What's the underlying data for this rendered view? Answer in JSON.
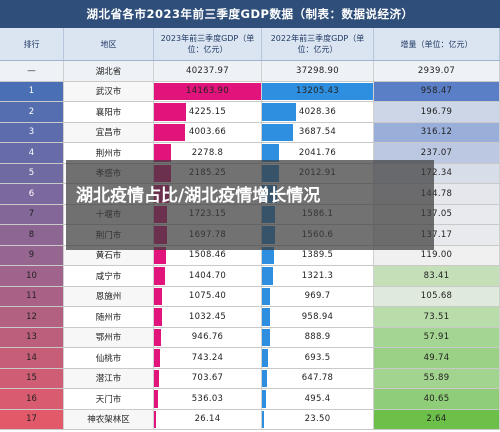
{
  "title": "湖北省各市2023年前三季度GDP数据（制表：数据说经济）",
  "headers": [
    "排行",
    "地区",
    "2023年前三季度GDP（单位：亿元）",
    "2022年前三季度GDP（单位：亿元）",
    "增量（单位：亿元）"
  ],
  "total": {
    "rank": "—",
    "region": "湖北省",
    "gdp2023": "40237.97",
    "gdp2022": "37298.90",
    "increase": "2939.07"
  },
  "rows": [
    {
      "rank": "1",
      "region": "武汉市",
      "gdp2023": "14163.90",
      "gdp2022": "13205.43",
      "increase": "958.47",
      "v23": 14163.9,
      "v22": 13205.43,
      "vi": 958.47
    },
    {
      "rank": "2",
      "region": "襄阳市",
      "gdp2023": "4225.15",
      "gdp2022": "4028.36",
      "increase": "196.79",
      "v23": 4225.15,
      "v22": 4028.36,
      "vi": 196.79
    },
    {
      "rank": "3",
      "region": "宜昌市",
      "gdp2023": "4003.66",
      "gdp2022": "3687.54",
      "increase": "316.12",
      "v23": 4003.66,
      "v22": 3687.54,
      "vi": 316.12
    },
    {
      "rank": "4",
      "region": "荆州市",
      "gdp2023": "2278.8",
      "gdp2022": "2041.76",
      "increase": "237.07",
      "v23": 2278.8,
      "v22": 2041.76,
      "vi": 237.07
    },
    {
      "rank": "5",
      "region": "孝感市",
      "gdp2023": "2185.25",
      "gdp2022": "2012.91",
      "increase": "172.34",
      "v23": 2185.25,
      "v22": 2012.91,
      "vi": 172.34
    },
    {
      "rank": "6",
      "region": "",
      "gdp2023": "",
      "gdp2022": "",
      "increase": "144.78",
      "v23": 1950.0,
      "v22": 1805.2,
      "vi": 144.78
    },
    {
      "rank": "7",
      "region": "十堰市",
      "gdp2023": "1723.15",
      "gdp2022": "1586.1",
      "increase": "137.05",
      "v23": 1723.15,
      "v22": 1586.1,
      "vi": 137.05
    },
    {
      "rank": "8",
      "region": "荆门市",
      "gdp2023": "1697.78",
      "gdp2022": "1560.6",
      "increase": "137.17",
      "v23": 1697.78,
      "v22": 1560.6,
      "vi": 137.17
    },
    {
      "rank": "9",
      "region": "黄石市",
      "gdp2023": "1508.46",
      "gdp2022": "1389.5",
      "increase": "119.00",
      "v23": 1508.46,
      "v22": 1389.5,
      "vi": 119.0
    },
    {
      "rank": "10",
      "region": "咸宁市",
      "gdp2023": "1404.70",
      "gdp2022": "1321.3",
      "increase": "83.41",
      "v23": 1404.7,
      "v22": 1321.3,
      "vi": 83.41
    },
    {
      "rank": "11",
      "region": "恩施州",
      "gdp2023": "1075.40",
      "gdp2022": "969.7",
      "increase": "105.68",
      "v23": 1075.4,
      "v22": 969.7,
      "vi": 105.68
    },
    {
      "rank": "12",
      "region": "随州市",
      "gdp2023": "1032.45",
      "gdp2022": "958.94",
      "increase": "73.51",
      "v23": 1032.45,
      "v22": 958.94,
      "vi": 73.51
    },
    {
      "rank": "13",
      "region": "鄂州市",
      "gdp2023": "946.76",
      "gdp2022": "888.9",
      "increase": "57.91",
      "v23": 946.76,
      "v22": 888.9,
      "vi": 57.91
    },
    {
      "rank": "14",
      "region": "仙桃市",
      "gdp2023": "743.24",
      "gdp2022": "693.5",
      "increase": "49.74",
      "v23": 743.24,
      "v22": 693.5,
      "vi": 49.74
    },
    {
      "rank": "15",
      "region": "潜江市",
      "gdp2023": "703.67",
      "gdp2022": "647.78",
      "increase": "55.89",
      "v23": 703.67,
      "v22": 647.78,
      "vi": 55.89
    },
    {
      "rank": "16",
      "region": "天门市",
      "gdp2023": "536.03",
      "gdp2022": "495.4",
      "increase": "40.65",
      "v23": 536.03,
      "v22": 495.4,
      "vi": 40.65
    },
    {
      "rank": "17",
      "region": "神农架林区",
      "gdp2023": "26.14",
      "gdp2022": "23.50",
      "increase": "2.64",
      "v23": 26.14,
      "v22": 23.5,
      "vi": 2.64
    }
  ],
  "overlay_text": "湖北疫情占比/湖北疫情增长情况",
  "colors": {
    "header_bg": "#2f4f7a",
    "gdp2023_bar": "#e0147a",
    "gdp2022_bar": "#2e8fe0",
    "increase_high": "#5b7fc7",
    "increase_mid": "#f0f0f0",
    "increase_low": "#6cc04a",
    "rank_high": "#4a6fb5",
    "rank_low": "#e25a6a"
  }
}
